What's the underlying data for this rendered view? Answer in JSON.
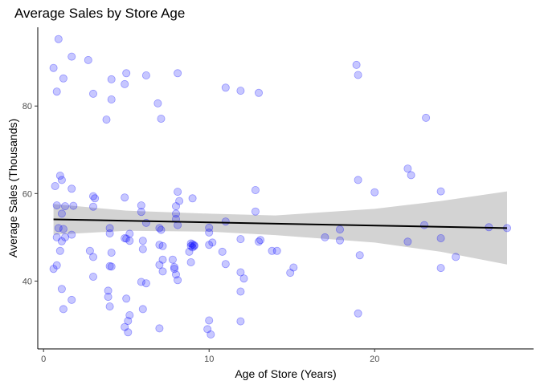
{
  "chart_data": {
    "type": "scatter",
    "title": "Average Sales by Store Age",
    "xlabel": "Age of Store (Years)",
    "ylabel": "Average Sales (Thousands)",
    "xlim": [
      -0.35,
      29.6
    ],
    "ylim": [
      24.5,
      98.0
    ],
    "x_ticks": [
      0,
      10,
      20
    ],
    "y_ticks": [
      40,
      60,
      80
    ],
    "grid": false,
    "legend": "none",
    "point_color": "#0000ff",
    "point_opacity": 0.22,
    "trend_color": "#000000",
    "band_color": "#d3d3d3",
    "points": [
      [
        0.6,
        42.8
      ],
      [
        0.6,
        88.7
      ],
      [
        0.7,
        61.7
      ],
      [
        0.8,
        83.3
      ],
      [
        0.8,
        57.3
      ],
      [
        0.8,
        50.0
      ],
      [
        0.8,
        43.6
      ],
      [
        0.9,
        95.3
      ],
      [
        0.9,
        52.1
      ],
      [
        1.0,
        64.1
      ],
      [
        1.0,
        46.9
      ],
      [
        1.1,
        63.1
      ],
      [
        1.1,
        55.4
      ],
      [
        1.1,
        49.1
      ],
      [
        1.1,
        38.2
      ],
      [
        1.2,
        86.3
      ],
      [
        1.2,
        33.6
      ],
      [
        1.2,
        51.9
      ],
      [
        1.3,
        57.1
      ],
      [
        1.3,
        50.0
      ],
      [
        1.7,
        91.3
      ],
      [
        1.7,
        61.1
      ],
      [
        1.7,
        50.6
      ],
      [
        1.7,
        35.7
      ],
      [
        1.8,
        57.2
      ],
      [
        2.7,
        90.5
      ],
      [
        2.8,
        46.9
      ],
      [
        3.0,
        82.8
      ],
      [
        3.0,
        59.4
      ],
      [
        3.0,
        45.5
      ],
      [
        3.0,
        41.0
      ],
      [
        3.0,
        57.0
      ],
      [
        3.1,
        58.9
      ],
      [
        3.8,
        76.9
      ],
      [
        3.9,
        37.8
      ],
      [
        3.9,
        36.4
      ],
      [
        4.0,
        52.1
      ],
      [
        4.0,
        50.9
      ],
      [
        4.0,
        43.4
      ],
      [
        4.0,
        34.2
      ],
      [
        4.1,
        86.1
      ],
      [
        4.1,
        81.5
      ],
      [
        4.1,
        46.5
      ],
      [
        4.1,
        43.3
      ],
      [
        4.9,
        85.0
      ],
      [
        4.9,
        59.1
      ],
      [
        4.9,
        49.8
      ],
      [
        4.9,
        29.5
      ],
      [
        5.0,
        87.5
      ],
      [
        5.0,
        49.7
      ],
      [
        5.0,
        36.0
      ],
      [
        5.1,
        30.9
      ],
      [
        5.1,
        28.3
      ],
      [
        5.2,
        32.2
      ],
      [
        5.2,
        50.8
      ],
      [
        5.2,
        49.2
      ],
      [
        5.9,
        57.3
      ],
      [
        5.9,
        55.8
      ],
      [
        5.9,
        39.8
      ],
      [
        6.0,
        49.2
      ],
      [
        6.0,
        47.3
      ],
      [
        6.0,
        33.6
      ],
      [
        6.2,
        87.0
      ],
      [
        6.2,
        53.3
      ],
      [
        6.2,
        39.5
      ],
      [
        6.9,
        80.6
      ],
      [
        7.0,
        52.1
      ],
      [
        7.0,
        48.3
      ],
      [
        7.0,
        43.7
      ],
      [
        7.0,
        29.2
      ],
      [
        7.1,
        77.1
      ],
      [
        7.1,
        51.7
      ],
      [
        7.2,
        48.0
      ],
      [
        7.2,
        42.2
      ],
      [
        7.2,
        44.9
      ],
      [
        7.8,
        44.9
      ],
      [
        7.9,
        43.2
      ],
      [
        7.9,
        42.8
      ],
      [
        8.0,
        57.1
      ],
      [
        8.0,
        55.4
      ],
      [
        8.0,
        54.2
      ],
      [
        8.0,
        41.5
      ],
      [
        8.1,
        87.5
      ],
      [
        8.1,
        60.4
      ],
      [
        8.1,
        52.8
      ],
      [
        8.1,
        40.2
      ],
      [
        8.2,
        58.3
      ],
      [
        8.8,
        46.7
      ],
      [
        8.9,
        48.6
      ],
      [
        8.9,
        48.0
      ],
      [
        8.9,
        44.3
      ],
      [
        9.0,
        48.4
      ],
      [
        9.0,
        58.9
      ],
      [
        9.0,
        47.7
      ],
      [
        9.1,
        48.2
      ],
      [
        9.1,
        48.0
      ],
      [
        9.9,
        29.0
      ],
      [
        10.0,
        52.2
      ],
      [
        10.0,
        51.1
      ],
      [
        10.0,
        48.3
      ],
      [
        10.0,
        31.0
      ],
      [
        10.1,
        27.8
      ],
      [
        10.2,
        48.8
      ],
      [
        10.8,
        46.7
      ],
      [
        11.0,
        84.2
      ],
      [
        11.0,
        53.6
      ],
      [
        11.0,
        43.9
      ],
      [
        11.9,
        83.5
      ],
      [
        11.9,
        49.6
      ],
      [
        11.9,
        42.0
      ],
      [
        11.9,
        37.6
      ],
      [
        11.9,
        30.8
      ],
      [
        12.1,
        40.6
      ],
      [
        12.8,
        60.8
      ],
      [
        12.8,
        55.9
      ],
      [
        13.0,
        83.0
      ],
      [
        13.0,
        49.0
      ],
      [
        13.1,
        49.4
      ],
      [
        13.8,
        46.9
      ],
      [
        14.1,
        46.9
      ],
      [
        14.9,
        41.9
      ],
      [
        15.1,
        43.1
      ],
      [
        17.0,
        50.0
      ],
      [
        17.9,
        51.8
      ],
      [
        17.9,
        49.3
      ],
      [
        18.9,
        89.4
      ],
      [
        19.0,
        63.1
      ],
      [
        19.0,
        87.1
      ],
      [
        19.0,
        32.6
      ],
      [
        19.1,
        45.9
      ],
      [
        20.0,
        60.3
      ],
      [
        22.0,
        65.7
      ],
      [
        22.0,
        49.0
      ],
      [
        22.2,
        64.2
      ],
      [
        23.0,
        52.8
      ],
      [
        23.1,
        77.3
      ],
      [
        24.0,
        60.5
      ],
      [
        24.0,
        49.8
      ],
      [
        24.0,
        43.0
      ],
      [
        24.9,
        45.5
      ],
      [
        26.9,
        52.3
      ],
      [
        28.0,
        52.1
      ]
    ],
    "trend": {
      "x": [
        0.6,
        28.0
      ],
      "y": [
        54.1,
        52.1
      ]
    },
    "band": {
      "x": [
        0.6,
        5,
        10,
        14,
        20,
        24,
        28.0
      ],
      "lower": [
        50.6,
        51.5,
        51.3,
        50.5,
        48.8,
        46.7,
        43.8
      ],
      "upper": [
        57.6,
        56.1,
        55.4,
        55.0,
        56.5,
        58.3,
        60.5
      ]
    }
  }
}
